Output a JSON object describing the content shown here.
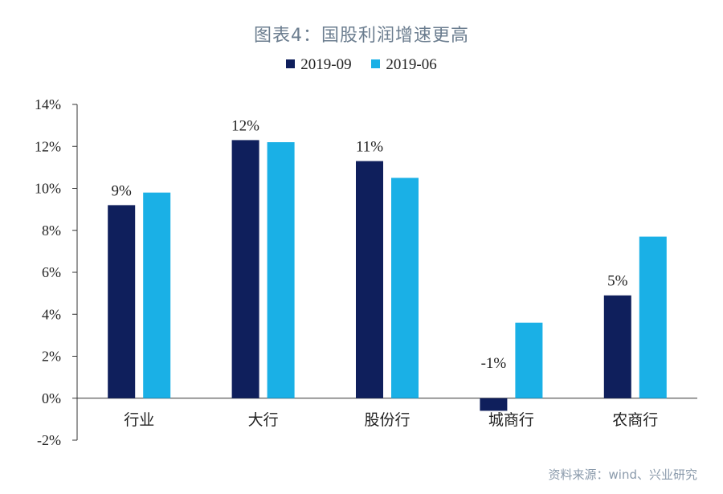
{
  "chart_data": {
    "type": "bar",
    "title": "图表4：国股利润增速更高",
    "categories": [
      "行业",
      "大行",
      "股份行",
      "城商行",
      "农商行"
    ],
    "series": [
      {
        "name": "2019-09",
        "color": "#0f1f5c",
        "values": [
          9.2,
          12.3,
          11.3,
          -0.6,
          4.9
        ]
      },
      {
        "name": "2019-06",
        "color": "#1ab0e6",
        "values": [
          9.8,
          12.2,
          10.5,
          3.6,
          7.7
        ]
      }
    ],
    "data_labels": [
      "9%",
      "12%",
      "11%",
      "-1%",
      "5%"
    ],
    "ylim": [
      -2,
      14
    ],
    "yticks": [
      -2,
      0,
      2,
      4,
      6,
      8,
      10,
      12,
      14
    ],
    "ytick_labels": [
      "-2%",
      "0%",
      "2%",
      "4%",
      "6%",
      "8%",
      "10%",
      "12%",
      "14%"
    ],
    "xlabel": "",
    "ylabel": "",
    "legend_position": "top-center",
    "grid": false
  },
  "source": "资料来源：wind、兴业研究"
}
